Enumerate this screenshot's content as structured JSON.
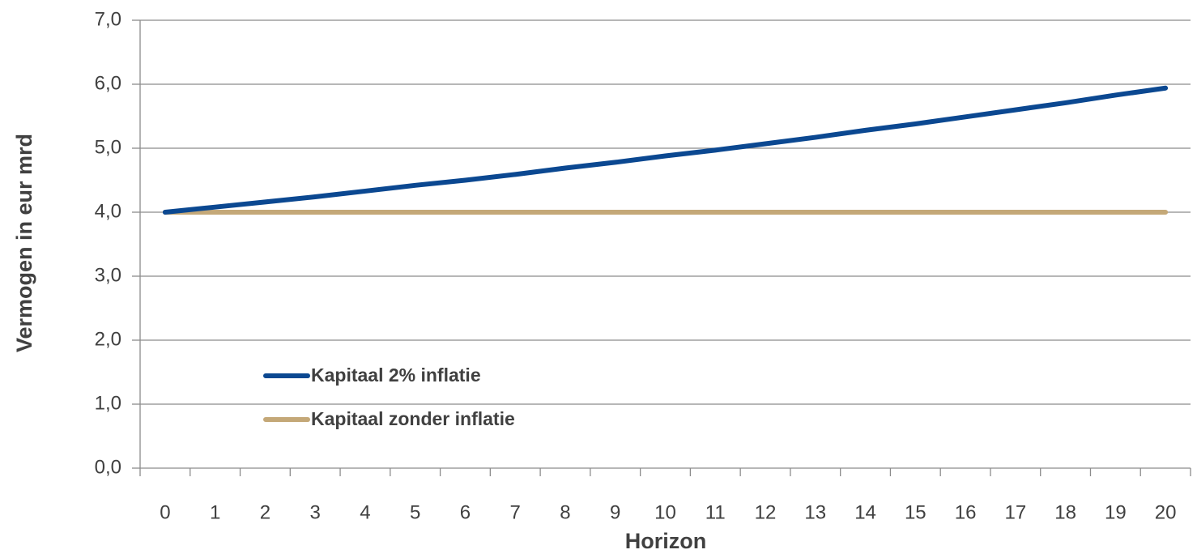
{
  "chart_data": {
    "type": "line",
    "x_label": "Horizon",
    "y_label": "Vermogen in eur mrd",
    "categories": [
      "0",
      "1",
      "2",
      "3",
      "4",
      "5",
      "6",
      "7",
      "8",
      "9",
      "10",
      "11",
      "12",
      "13",
      "14",
      "15",
      "16",
      "17",
      "18",
      "19",
      "20"
    ],
    "series": [
      {
        "name": "Kapitaal 2% inflatie",
        "color": "#0b4891",
        "values": [
          4.0,
          4.08,
          4.16,
          4.24,
          4.33,
          4.42,
          4.5,
          4.59,
          4.69,
          4.78,
          4.88,
          4.97,
          5.07,
          5.17,
          5.28,
          5.38,
          5.49,
          5.6,
          5.71,
          5.83,
          5.94
        ]
      },
      {
        "name": "Kapitaal  zonder inflatie",
        "color": "#c4a878",
        "values": [
          4.0,
          4.0,
          4.0,
          4.0,
          4.0,
          4.0,
          4.0,
          4.0,
          4.0,
          4.0,
          4.0,
          4.0,
          4.0,
          4.0,
          4.0,
          4.0,
          4.0,
          4.0,
          4.0,
          4.0,
          4.0
        ]
      }
    ],
    "ylim": [
      0,
      7
    ],
    "yticks": [
      {
        "value": 0,
        "label": "0,0"
      },
      {
        "value": 1,
        "label": "1,0"
      },
      {
        "value": 2,
        "label": "2,0"
      },
      {
        "value": 3,
        "label": "3,0"
      },
      {
        "value": 4,
        "label": "4,0"
      },
      {
        "value": 5,
        "label": "5,0"
      },
      {
        "value": 6,
        "label": "6,0"
      },
      {
        "value": 7,
        "label": "7,0"
      }
    ],
    "grid": true,
    "legend_position": "lower left"
  }
}
